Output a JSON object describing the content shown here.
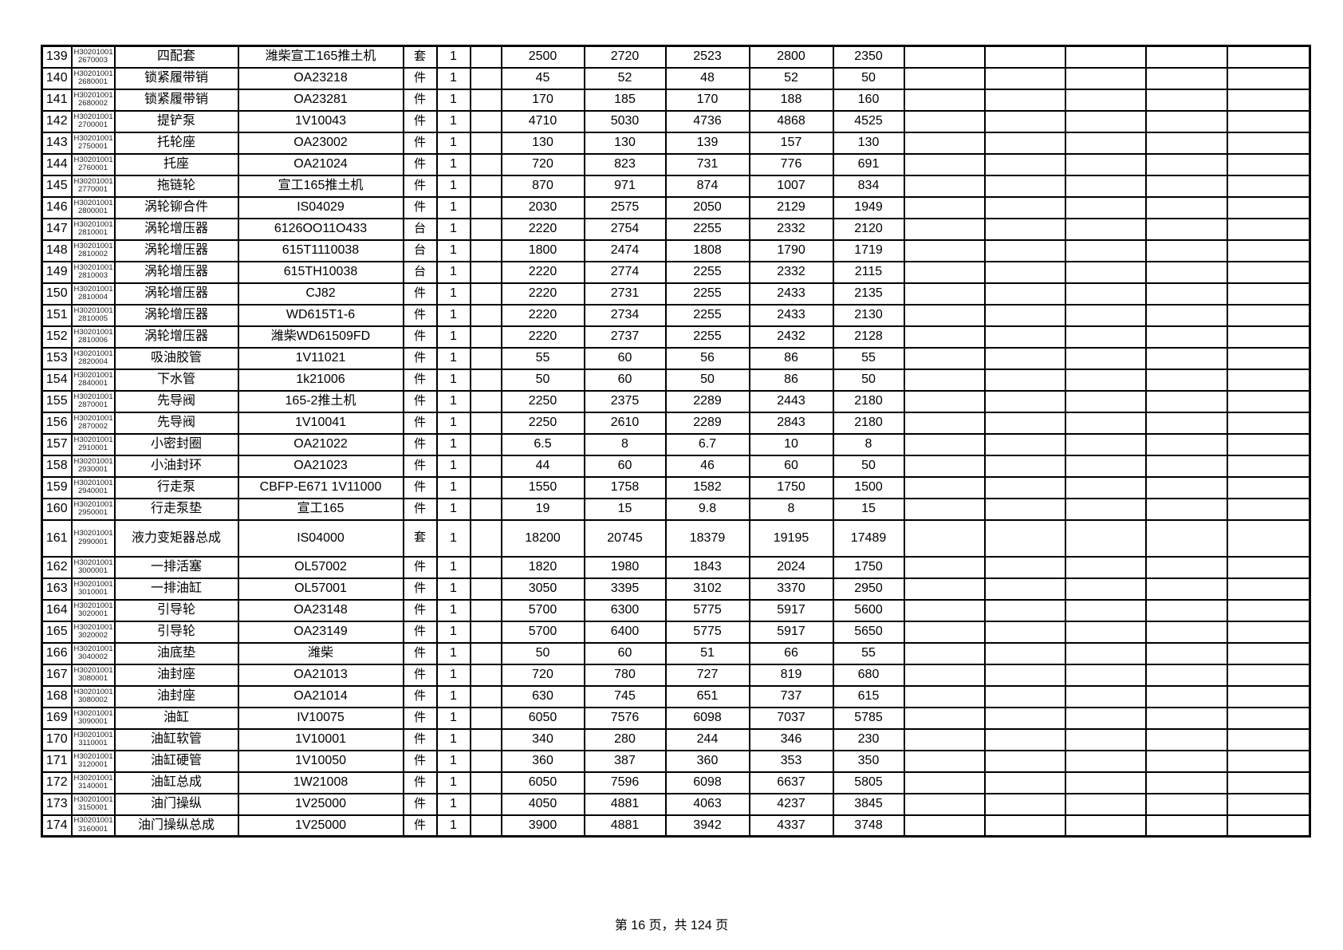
{
  "document": {
    "footer": "第 16 页，共 124 页"
  },
  "table": {
    "code_prefix": "H30201001",
    "rows": [
      {
        "no": "139",
        "code_suffix": "2670003",
        "name": "四配套",
        "model": "潍柴宣工165推土机",
        "unit": "套",
        "qty": "1",
        "prices": [
          "2500",
          "2720",
          "2523",
          "2800",
          "2350"
        ]
      },
      {
        "no": "140",
        "code_suffix": "2680001",
        "name": "锁紧履带销",
        "model": "OA23218",
        "unit": "件",
        "qty": "1",
        "prices": [
          "45",
          "52",
          "48",
          "52",
          "50"
        ]
      },
      {
        "no": "141",
        "code_suffix": "2680002",
        "name": "锁紧履带销",
        "model": "OA23281",
        "unit": "件",
        "qty": "1",
        "prices": [
          "170",
          "185",
          "170",
          "188",
          "160"
        ]
      },
      {
        "no": "142",
        "code_suffix": "2700001",
        "name": "提铲泵",
        "model": "1V10043",
        "unit": "件",
        "qty": "1",
        "prices": [
          "4710",
          "5030",
          "4736",
          "4868",
          "4525"
        ]
      },
      {
        "no": "143",
        "code_suffix": "2750001",
        "name": "托轮座",
        "model": "OA23002",
        "unit": "件",
        "qty": "1",
        "prices": [
          "130",
          "130",
          "139",
          "157",
          "130"
        ]
      },
      {
        "no": "144",
        "code_suffix": "2760001",
        "name": "托座",
        "model": "OA21024",
        "unit": "件",
        "qty": "1",
        "prices": [
          "720",
          "823",
          "731",
          "776",
          "691"
        ]
      },
      {
        "no": "145",
        "code_suffix": "2770001",
        "name": "拖链轮",
        "model": "宣工165推土机",
        "unit": "件",
        "qty": "1",
        "prices": [
          "870",
          "971",
          "874",
          "1007",
          "834"
        ]
      },
      {
        "no": "146",
        "code_suffix": "2800001",
        "name": "涡轮铆合件",
        "model": "IS04029",
        "unit": "件",
        "qty": "1",
        "prices": [
          "2030",
          "2575",
          "2050",
          "2129",
          "1949"
        ]
      },
      {
        "no": "147",
        "code_suffix": "2810001",
        "name": "涡轮增压器",
        "model": "6126OO11O433",
        "unit": "台",
        "qty": "1",
        "prices": [
          "2220",
          "2754",
          "2255",
          "2332",
          "2120"
        ]
      },
      {
        "no": "148",
        "code_suffix": "2810002",
        "name": "涡轮增压器",
        "model": "615T1110038",
        "unit": "台",
        "qty": "1",
        "prices": [
          "1800",
          "2474",
          "1808",
          "1790",
          "1719"
        ]
      },
      {
        "no": "149",
        "code_suffix": "2810003",
        "name": "涡轮增压器",
        "model": "615TH10038",
        "unit": "台",
        "qty": "1",
        "prices": [
          "2220",
          "2774",
          "2255",
          "2332",
          "2115"
        ]
      },
      {
        "no": "150",
        "code_suffix": "2810004",
        "name": "涡轮增压器",
        "model": "CJ82",
        "unit": "件",
        "qty": "1",
        "prices": [
          "2220",
          "2731",
          "2255",
          "2433",
          "2135"
        ]
      },
      {
        "no": "151",
        "code_suffix": "2810005",
        "name": "涡轮增压器",
        "model": "WD615T1-6",
        "unit": "件",
        "qty": "1",
        "prices": [
          "2220",
          "2734",
          "2255",
          "2433",
          "2130"
        ]
      },
      {
        "no": "152",
        "code_suffix": "2810006",
        "name": "涡轮增压器",
        "model": "潍柴WD61509FD",
        "unit": "件",
        "qty": "1",
        "prices": [
          "2220",
          "2737",
          "2255",
          "2432",
          "2128"
        ]
      },
      {
        "no": "153",
        "code_suffix": "2820004",
        "name": "吸油胶管",
        "model": "1V11021",
        "unit": "件",
        "qty": "1",
        "prices": [
          "55",
          "60",
          "56",
          "86",
          "55"
        ]
      },
      {
        "no": "154",
        "code_suffix": "2840001",
        "name": "下水管",
        "model": "1k21006",
        "unit": "件",
        "qty": "1",
        "prices": [
          "50",
          "60",
          "50",
          "86",
          "50"
        ]
      },
      {
        "no": "155",
        "code_suffix": "2870001",
        "name": "先导阀",
        "model": "165-2推土机",
        "unit": "件",
        "qty": "1",
        "prices": [
          "2250",
          "2375",
          "2289",
          "2443",
          "2180"
        ]
      },
      {
        "no": "156",
        "code_suffix": "2870002",
        "name": "先导阀",
        "model": "1V10041",
        "unit": "件",
        "qty": "1",
        "prices": [
          "2250",
          "2610",
          "2289",
          "2843",
          "2180"
        ]
      },
      {
        "no": "157",
        "code_suffix": "2910001",
        "name": "小密封圈",
        "model": "OA21022",
        "unit": "件",
        "qty": "1",
        "prices": [
          "6.5",
          "8",
          "6.7",
          "10",
          "8"
        ]
      },
      {
        "no": "158",
        "code_suffix": "2930001",
        "name": "小油封环",
        "model": "OA21023",
        "unit": "件",
        "qty": "1",
        "prices": [
          "44",
          "60",
          "46",
          "60",
          "50"
        ]
      },
      {
        "no": "159",
        "code_suffix": "2940001",
        "name": "行走泵",
        "model": "CBFP-E671 1V11000",
        "unit": "件",
        "qty": "1",
        "prices": [
          "1550",
          "1758",
          "1582",
          "1750",
          "1500"
        ]
      },
      {
        "no": "160",
        "code_suffix": "2950001",
        "name": "行走泵垫",
        "model": "宣工165",
        "unit": "件",
        "qty": "1",
        "prices": [
          "19",
          "15",
          "9.8",
          "8",
          "15"
        ]
      },
      {
        "no": "161",
        "code_suffix": "2990001",
        "name": "液力变矩器总成",
        "model": "IS04000",
        "unit": "套",
        "qty": "1",
        "prices": [
          "18200",
          "20745",
          "18379",
          "19195",
          "17489"
        ]
      },
      {
        "no": "162",
        "code_suffix": "3000001",
        "name": "一排活塞",
        "model": "OL57002",
        "unit": "件",
        "qty": "1",
        "prices": [
          "1820",
          "1980",
          "1843",
          "2024",
          "1750"
        ]
      },
      {
        "no": "163",
        "code_suffix": "3010001",
        "name": "一排油缸",
        "model": "OL57001",
        "unit": "件",
        "qty": "1",
        "prices": [
          "3050",
          "3395",
          "3102",
          "3370",
          "2950"
        ]
      },
      {
        "no": "164",
        "code_suffix": "3020001",
        "name": "引导轮",
        "model": "OA23148",
        "unit": "件",
        "qty": "1",
        "prices": [
          "5700",
          "6300",
          "5775",
          "5917",
          "5600"
        ]
      },
      {
        "no": "165",
        "code_suffix": "3020002",
        "name": "引导轮",
        "model": "OA23149",
        "unit": "件",
        "qty": "1",
        "prices": [
          "5700",
          "6400",
          "5775",
          "5917",
          "5650"
        ]
      },
      {
        "no": "166",
        "code_suffix": "3040002",
        "name": "油底垫",
        "model": "潍柴",
        "unit": "件",
        "qty": "1",
        "prices": [
          "50",
          "60",
          "51",
          "66",
          "55"
        ]
      },
      {
        "no": "167",
        "code_suffix": "3080001",
        "name": "油封座",
        "model": "OA21013",
        "unit": "件",
        "qty": "1",
        "prices": [
          "720",
          "780",
          "727",
          "819",
          "680"
        ]
      },
      {
        "no": "168",
        "code_suffix": "3080002",
        "name": "油封座",
        "model": "OA21014",
        "unit": "件",
        "qty": "1",
        "prices": [
          "630",
          "745",
          "651",
          "737",
          "615"
        ]
      },
      {
        "no": "169",
        "code_suffix": "3090001",
        "name": "油缸",
        "model": "IV10075",
        "unit": "件",
        "qty": "1",
        "prices": [
          "6050",
          "7576",
          "6098",
          "7037",
          "5785"
        ]
      },
      {
        "no": "170",
        "code_suffix": "3110001",
        "name": "油缸软管",
        "model": "1V10001",
        "unit": "件",
        "qty": "1",
        "prices": [
          "340",
          "280",
          "244",
          "346",
          "230"
        ]
      },
      {
        "no": "171",
        "code_suffix": "3120001",
        "name": "油缸硬管",
        "model": "1V10050",
        "unit": "件",
        "qty": "1",
        "prices": [
          "360",
          "387",
          "360",
          "353",
          "350"
        ]
      },
      {
        "no": "172",
        "code_suffix": "3140001",
        "name": "油缸总成",
        "model": "1W21008",
        "unit": "件",
        "qty": "1",
        "prices": [
          "6050",
          "7596",
          "6098",
          "6637",
          "5805"
        ]
      },
      {
        "no": "173",
        "code_suffix": "3150001",
        "name": "油门操纵",
        "model": "1V25000",
        "unit": "件",
        "qty": "1",
        "prices": [
          "4050",
          "4881",
          "4063",
          "4237",
          "3845"
        ]
      },
      {
        "no": "174",
        "code_suffix": "3160001",
        "name": "油门操纵总成",
        "model": "1V25000",
        "unit": "件",
        "qty": "1",
        "prices": [
          "3900",
          "4881",
          "3942",
          "4337",
          "3748"
        ]
      }
    ]
  }
}
